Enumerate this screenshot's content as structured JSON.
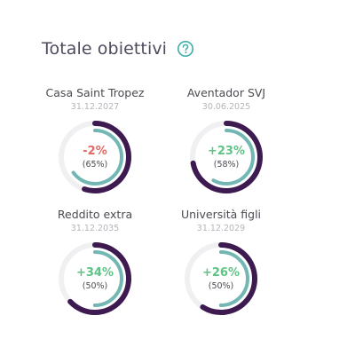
{
  "header": {
    "title": "Totale obiettivi",
    "help_icon": "help-question-icon"
  },
  "colors": {
    "outer_ring": "#3d1a4f",
    "inner_ring": "#72b7b3",
    "track": "#f0f0f3",
    "negative": "#e26a64",
    "positive": "#5dc486"
  },
  "goals": [
    {
      "name": "Casa Saint Tropez",
      "date": "31.12.2027",
      "change": "-2%",
      "progress_label": "(65%)",
      "progress": 0.65,
      "outer_fraction": 0.55,
      "trend": "negative"
    },
    {
      "name": "Aventador SVJ",
      "date": "30.06.2025",
      "change": "+23%",
      "progress_label": "(58%)",
      "progress": 0.58,
      "outer_fraction": 0.72,
      "trend": "positive"
    },
    {
      "name": "Reddito extra",
      "date": "31.12.2035",
      "change": "+34%",
      "progress_label": "(50%)",
      "progress": 0.5,
      "outer_fraction": 0.63,
      "trend": "positive"
    },
    {
      "name": "Università figli",
      "date": "31.12.2029",
      "change": "+26%",
      "progress_label": "(50%)",
      "progress": 0.5,
      "outer_fraction": 0.59,
      "trend": "positive"
    }
  ]
}
